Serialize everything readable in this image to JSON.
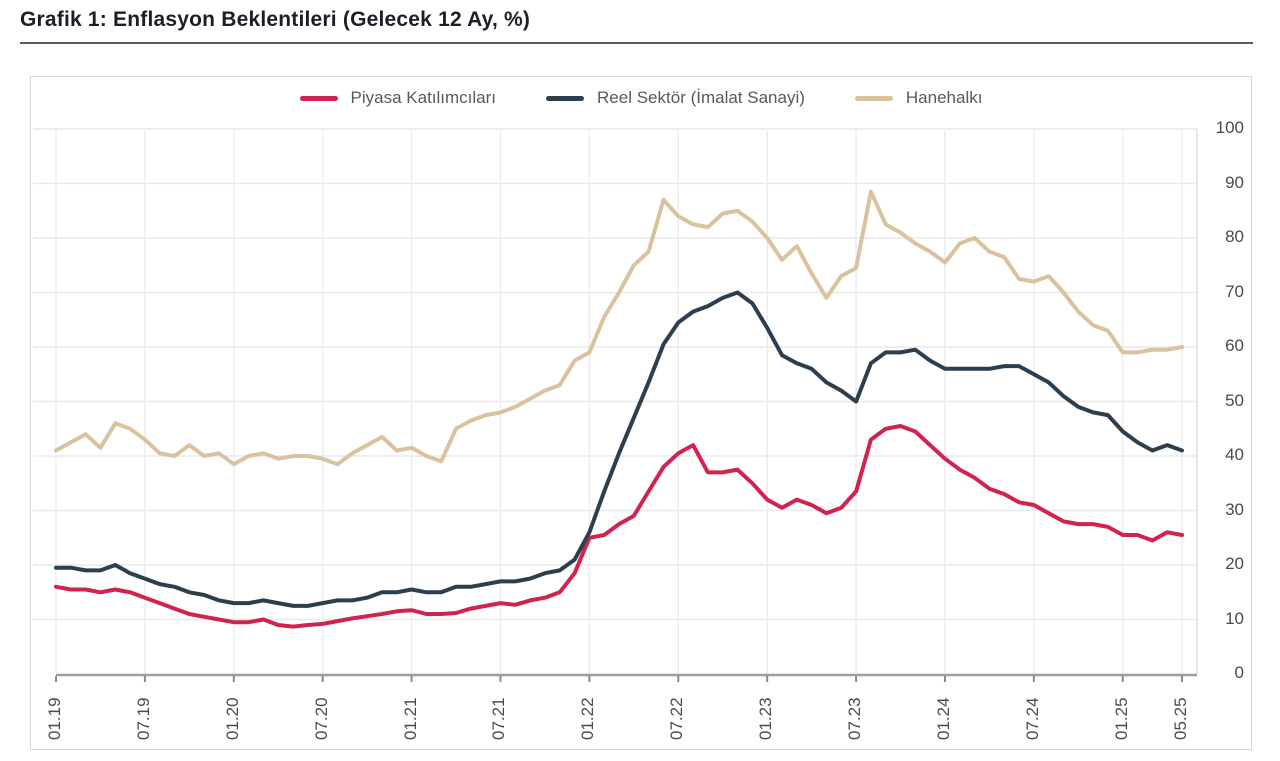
{
  "page": {
    "title": "Grafik 1: Enflasyon Beklentileri (Gelecek 12 Ay, %)"
  },
  "chart_data": {
    "type": "line",
    "title": "Grafik 1: Enflasyon Beklentileri (Gelecek 12 Ay, %)",
    "x_unit": "month",
    "x_start": "2019-01",
    "x_end": "2025-05",
    "n_points": 77,
    "grid": true,
    "legend_position": "top-center",
    "y_axis_side": "right",
    "ylim": [
      0,
      100
    ],
    "y_ticks": [
      0,
      10,
      20,
      30,
      40,
      50,
      60,
      70,
      80,
      90,
      100
    ],
    "x_tick_labels": [
      {
        "label": "01.19",
        "month_index": 0
      },
      {
        "label": "07.19",
        "month_index": 6
      },
      {
        "label": "01.20",
        "month_index": 12
      },
      {
        "label": "07.20",
        "month_index": 18
      },
      {
        "label": "01.21",
        "month_index": 24
      },
      {
        "label": "07.21",
        "month_index": 30
      },
      {
        "label": "01.22",
        "month_index": 36
      },
      {
        "label": "07.22",
        "month_index": 42
      },
      {
        "label": "01.23",
        "month_index": 48
      },
      {
        "label": "07.23",
        "month_index": 54
      },
      {
        "label": "01.24",
        "month_index": 60
      },
      {
        "label": "07.24",
        "month_index": 66
      },
      {
        "label": "01.25",
        "month_index": 72
      },
      {
        "label": "05.25",
        "month_index": 76
      }
    ],
    "series": [
      {
        "name": "Piyasa Katılımcıları",
        "color": "#d0234f",
        "values": [
          16,
          15.5,
          15.5,
          15,
          15.5,
          15,
          14,
          13,
          12,
          11,
          10.5,
          10,
          9.5,
          9.5,
          10,
          9,
          8.7,
          9,
          9.2,
          9.7,
          10.2,
          10.6,
          11,
          11.5,
          11.7,
          11,
          11,
          11.2,
          12,
          12.5,
          13,
          12.7,
          13.5,
          14,
          15,
          18.5,
          25,
          25.5,
          27.5,
          29,
          33.5,
          38,
          40.5,
          42,
          37,
          37,
          37.5,
          35,
          32,
          30.5,
          32,
          31,
          29.5,
          30.5,
          33.5,
          43,
          45,
          45.5,
          44.5,
          42,
          39.5,
          37.5,
          36,
          34,
          33,
          31.5,
          31,
          29.5,
          28,
          27.5,
          27.5,
          27,
          25.5,
          25.5,
          24.5,
          26,
          25.5
        ]
      },
      {
        "name": "Reel Sektör (İmalat Sanayi)",
        "color": "#2d3e4f",
        "values": [
          19.5,
          19.5,
          19,
          19,
          20,
          18.5,
          17.5,
          16.5,
          16,
          15,
          14.5,
          13.5,
          13,
          13,
          13.5,
          13,
          12.5,
          12.5,
          13,
          13.5,
          13.5,
          14,
          15,
          15,
          15.5,
          15,
          15,
          16,
          16,
          16.5,
          17,
          17,
          17.5,
          18.5,
          19,
          21,
          26,
          33.5,
          40.5,
          47,
          53.5,
          60.5,
          64.5,
          66.5,
          67.5,
          69,
          70,
          68,
          63.5,
          58.5,
          57,
          56,
          53.5,
          52,
          50,
          57,
          59,
          59,
          59.5,
          57.5,
          56,
          56,
          56,
          56,
          56.5,
          56.5,
          55,
          53.5,
          51,
          49,
          48,
          47.5,
          44.5,
          42.5,
          41,
          42,
          41
        ]
      },
      {
        "name": "Hanehalkı",
        "color": "#d9c39f",
        "values": [
          41,
          42.5,
          44,
          41.5,
          46,
          45,
          43,
          40.5,
          40,
          42,
          40,
          40.5,
          38.5,
          40,
          40.5,
          39.5,
          40,
          40,
          39.5,
          38.5,
          40.5,
          42,
          43.5,
          41,
          41.5,
          40,
          39,
          45,
          46.5,
          47.5,
          48,
          49,
          50.5,
          52,
          53,
          57.5,
          59,
          65.5,
          70,
          75,
          77.5,
          87,
          84,
          82.5,
          82,
          84.5,
          85,
          83,
          80,
          76,
          78.5,
          73.5,
          69,
          73,
          74.5,
          88.5,
          82.5,
          81,
          79,
          77.5,
          75.5,
          79,
          80,
          77.5,
          76.5,
          72.5,
          72,
          73,
          70,
          66.5,
          64,
          63,
          59,
          59,
          59.5,
          59.5,
          60
        ]
      }
    ]
  }
}
